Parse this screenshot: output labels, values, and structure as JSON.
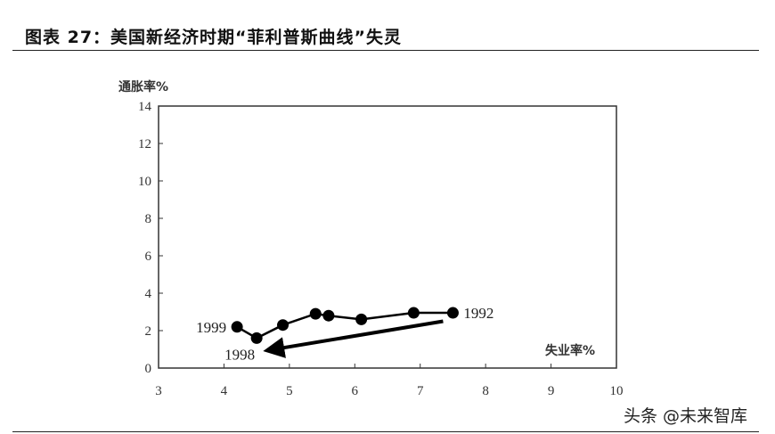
{
  "title": "图表 27：美国新经济时期“菲利普斯曲线”失灵",
  "watermark": "头条 @未来智库",
  "chart_data": {
    "type": "line",
    "xlabel": "失业率%",
    "ylabel": "通胀率%",
    "xlim": [
      3,
      10
    ],
    "ylim": [
      0,
      14
    ],
    "xticks": [
      3,
      4,
      5,
      6,
      7,
      8,
      9,
      10
    ],
    "yticks": [
      0,
      2,
      4,
      6,
      8,
      10,
      12,
      14
    ],
    "grid": false,
    "series": [
      {
        "points": [
          {
            "x": 7.5,
            "y": 2.95
          },
          {
            "x": 6.9,
            "y": 2.95
          },
          {
            "x": 6.1,
            "y": 2.6
          },
          {
            "x": 5.6,
            "y": 2.8
          },
          {
            "x": 5.4,
            "y": 2.9
          },
          {
            "x": 4.9,
            "y": 2.3
          },
          {
            "x": 4.5,
            "y": 1.6
          },
          {
            "x": 4.2,
            "y": 2.2
          }
        ]
      }
    ],
    "annotations": [
      {
        "text": "1992",
        "x": 7.5,
        "y": 2.95
      },
      {
        "text": "1999",
        "x": 4.2,
        "y": 2.2
      },
      {
        "text": "1998",
        "x": 4.5,
        "y": 1.6
      }
    ],
    "arrow": {
      "from": [
        7.35,
        2.5
      ],
      "to": [
        4.65,
        0.95
      ]
    },
    "color": "#000000"
  }
}
